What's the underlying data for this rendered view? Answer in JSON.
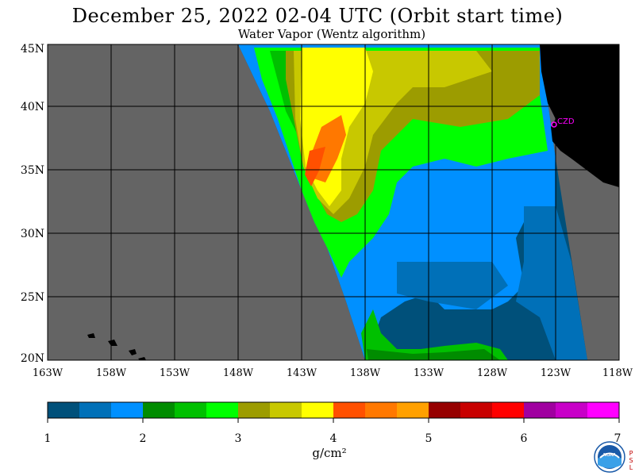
{
  "title": "December 25, 2022  02-04 UTC  (Orbit start time)",
  "subtitle": "Water Vapor (Wentz algorithm)",
  "lat_labels": [
    "45N",
    "40N",
    "35N",
    "30N",
    "25N",
    "20N"
  ],
  "lon_labels": [
    "163W",
    "158W",
    "153W",
    "148W",
    "143W",
    "138W",
    "133W",
    "128W",
    "123W",
    "118W"
  ],
  "station_label": "CZD",
  "colorbar": {
    "ticks": [
      "1",
      "2",
      "3",
      "4",
      "5",
      "6",
      "7"
    ],
    "units": "g/cm²",
    "colors": [
      "#00507a",
      "#0070b8",
      "#0090ff",
      "#008c00",
      "#00c000",
      "#00ff00",
      "#9c9c00",
      "#c8c800",
      "#ffff00",
      "#ff5000",
      "#ff7800",
      "#ffa000",
      "#960000",
      "#c80000",
      "#ff0000",
      "#a000a0",
      "#c800c8",
      "#ff00ff"
    ]
  },
  "colors": {
    "nodata": "#646464",
    "land": "#000000",
    "grid": "#000000",
    "station": "#ff00ff"
  },
  "logo_letters": "NOAA",
  "side_letters": [
    "P",
    "S",
    "L"
  ]
}
